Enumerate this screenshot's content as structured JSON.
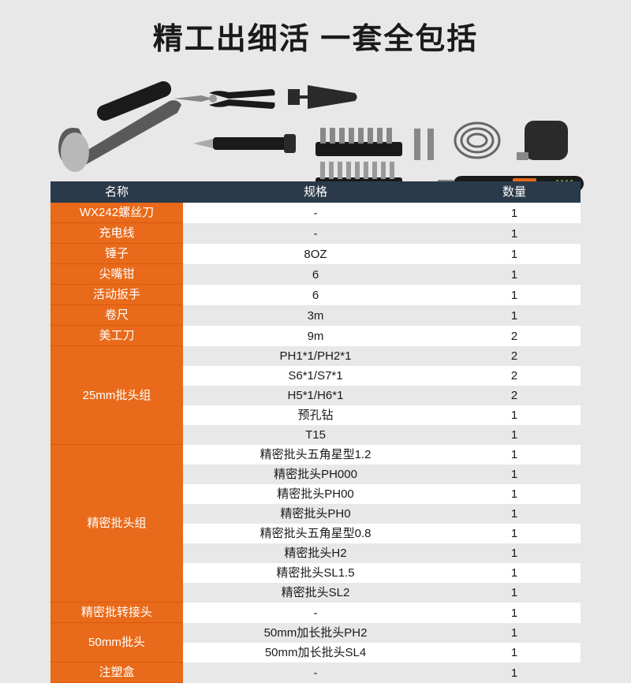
{
  "headline": "精工出细活 一套全包括",
  "colors": {
    "header_bg": "#2b3a4a",
    "name_bg": "#e86a1a",
    "page_bg": "#e8e8e8",
    "row_alt": "#ffffff"
  },
  "table": {
    "headers": {
      "name": "名称",
      "spec": "规格",
      "qty": "数量"
    },
    "rows": [
      {
        "name": "WX242螺丝刀",
        "subs": [
          {
            "spec": "-",
            "qty": "1"
          }
        ]
      },
      {
        "name": "充电线",
        "subs": [
          {
            "spec": "-",
            "qty": "1"
          }
        ]
      },
      {
        "name": "锤子",
        "subs": [
          {
            "spec": "8OZ",
            "qty": "1"
          }
        ]
      },
      {
        "name": "尖嘴钳",
        "subs": [
          {
            "spec": "6",
            "qty": "1"
          }
        ]
      },
      {
        "name": "活动扳手",
        "subs": [
          {
            "spec": "6",
            "qty": "1"
          }
        ]
      },
      {
        "name": "卷尺",
        "subs": [
          {
            "spec": "3m",
            "qty": "1"
          }
        ]
      },
      {
        "name": "美工刀",
        "subs": [
          {
            "spec": "9m",
            "qty": "2"
          }
        ]
      },
      {
        "name": "25mm批头组",
        "subs": [
          {
            "spec": "PH1*1/PH2*1",
            "qty": "2"
          },
          {
            "spec": "S6*1/S7*1",
            "qty": "2"
          },
          {
            "spec": "H5*1/H6*1",
            "qty": "2"
          },
          {
            "spec": "预孔钻",
            "qty": "1"
          },
          {
            "spec": "T15",
            "qty": "1"
          }
        ]
      },
      {
        "name": "精密批头组",
        "subs": [
          {
            "spec": "精密批头五角星型1.2",
            "qty": "1"
          },
          {
            "spec": "精密批头PH000",
            "qty": "1"
          },
          {
            "spec": "精密批头PH00",
            "qty": "1"
          },
          {
            "spec": "精密批头PH0",
            "qty": "1"
          },
          {
            "spec": "精密批头五角星型0.8",
            "qty": "1"
          },
          {
            "spec": "精密批头H2",
            "qty": "1"
          },
          {
            "spec": "精密批头SL1.5",
            "qty": "1"
          },
          {
            "spec": "精密批头SL2",
            "qty": "1"
          }
        ]
      },
      {
        "name": "精密批转接头",
        "subs": [
          {
            "spec": "-",
            "qty": "1"
          }
        ]
      },
      {
        "name": "50mm批头",
        "subs": [
          {
            "spec": "50mm加长批头PH2",
            "qty": "1"
          },
          {
            "spec": "50mm加长批头SL4",
            "qty": "1"
          }
        ]
      },
      {
        "name": "注塑盒",
        "subs": [
          {
            "spec": "-",
            "qty": "1"
          }
        ]
      }
    ]
  }
}
